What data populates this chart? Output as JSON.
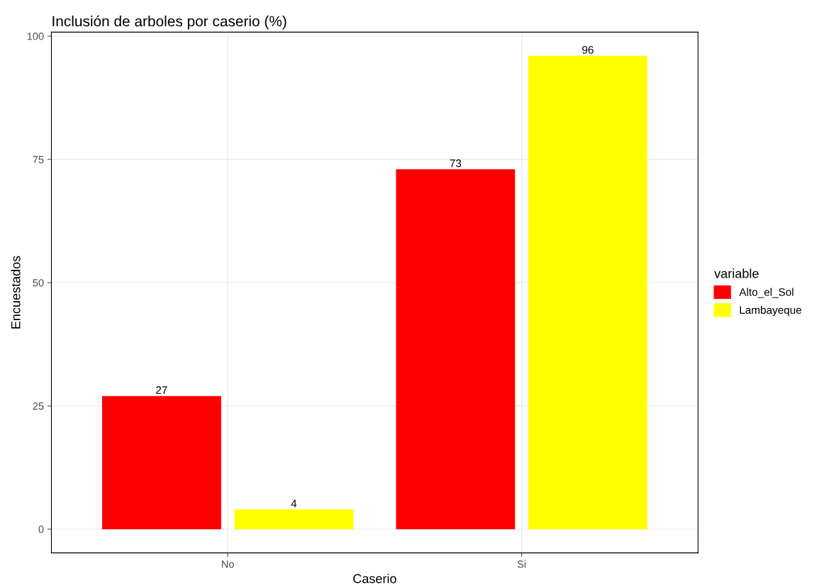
{
  "chart_data": {
    "type": "bar",
    "title": "Inclusión de arboles por caserio (%)",
    "xlabel": "Caserio",
    "ylabel": "Encuestados",
    "legend_title": "variable",
    "categories": [
      "No",
      "Si"
    ],
    "series": [
      {
        "name": "Alto_el_Sol",
        "color": "#ff0000",
        "values": [
          27,
          73
        ]
      },
      {
        "name": "Lambayeque",
        "color": "#ffff00",
        "values": [
          4,
          96
        ]
      }
    ],
    "ylim": [
      -4.8,
      100.8
    ],
    "yticks": [
      0,
      25,
      50,
      75,
      100
    ],
    "grid": true,
    "legend": "right",
    "data_labels": true
  }
}
